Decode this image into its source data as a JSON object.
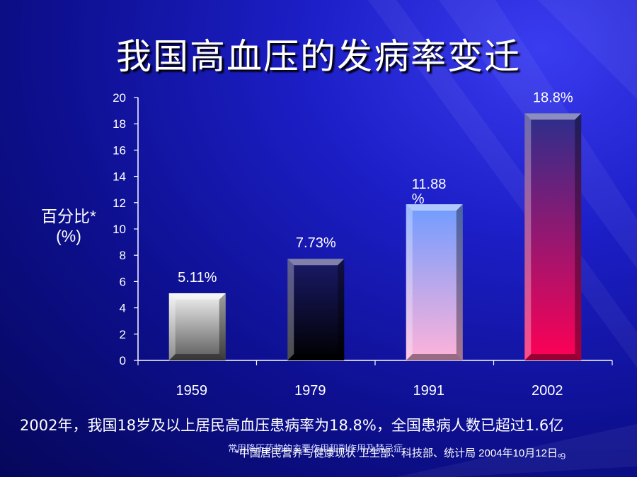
{
  "title": "我国高血压的发病率变迁",
  "y_axis_label_line1": "百分比*",
  "y_axis_label_line2": "(%)",
  "caption": "2002年，我国18岁及以上居民高血压患病率为18.8%，全国患病人数已超过1.6亿",
  "footer_overlay_text": "常用降压药物的主要作用和副作用及禁忌症",
  "footer_source": "*中国居民营养与健康现状 卫生部、科技部、统计局 2004年10月12日。",
  "slide_number": "9",
  "chart_data": {
    "type": "bar",
    "categories": [
      "1959",
      "1979",
      "1991",
      "2002"
    ],
    "values": [
      5.11,
      7.73,
      11.88,
      18.8
    ],
    "data_labels": [
      "5.11%",
      "7.73%",
      "11.88 %",
      "18.8%"
    ],
    "ylim": [
      0,
      20
    ],
    "yticks": [
      0,
      2,
      4,
      6,
      8,
      10,
      12,
      14,
      16,
      18,
      20
    ],
    "grid": false,
    "bar_gradients": [
      [
        "#f2f2f2",
        "#5a5a5a"
      ],
      [
        "#1a1a6a",
        "#000000"
      ],
      [
        "#6f9cff",
        "#ffb3d9"
      ],
      [
        "#2b2f8c",
        "#ff0055"
      ]
    ]
  }
}
